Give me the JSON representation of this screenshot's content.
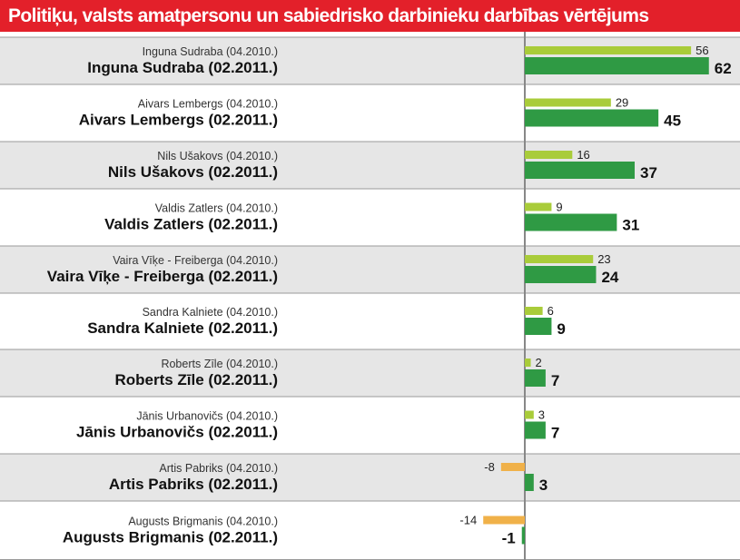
{
  "title": "Politiķu, valsts amatpersonu un sabiedrisko darbinieku darbības vērtējums",
  "colors": {
    "title_bg": "#e3202a",
    "prev_bar": "#a9cc3a",
    "curr_bar": "#2f9a44",
    "negative_bar": "#f0b149",
    "row_shade": "#e6e6e6",
    "axis": "#888888"
  },
  "chart_data": {
    "type": "bar",
    "orientation": "horizontal",
    "title": "Politiķu, valsts amatpersonu un sabiedrisko darbinieku darbības vērtējums",
    "series": [
      {
        "name": "04.2010.",
        "values": [
          56,
          29,
          16,
          9,
          23,
          6,
          2,
          3,
          -8,
          -14
        ]
      },
      {
        "name": "02.2011.",
        "values": [
          62,
          45,
          37,
          31,
          24,
          9,
          7,
          7,
          3,
          -1
        ]
      }
    ],
    "rows": [
      {
        "prev_label": "Inguna Sudraba (04.2010.)",
        "curr_label": "Inguna Sudraba (02.2011.)",
        "prev": "56",
        "curr": "62"
      },
      {
        "prev_label": "Aivars Lembergs (04.2010.)",
        "curr_label": "Aivars Lembergs (02.2011.)",
        "prev": "29",
        "curr": "45"
      },
      {
        "prev_label": "Nils Ušakovs (04.2010.)",
        "curr_label": "Nils Ušakovs (02.2011.)",
        "prev": "16",
        "curr": "37"
      },
      {
        "prev_label": "Valdis Zatlers (04.2010.)",
        "curr_label": "Valdis Zatlers (02.2011.)",
        "prev": "9",
        "curr": "31"
      },
      {
        "prev_label": "Vaira Vīķe - Freiberga (04.2010.)",
        "curr_label": "Vaira Vīķe - Freiberga (02.2011.)",
        "prev": "23",
        "curr": "24"
      },
      {
        "prev_label": "Sandra Kalniete (04.2010.)",
        "curr_label": "Sandra Kalniete (02.2011.)",
        "prev": "6",
        "curr": "9"
      },
      {
        "prev_label": "Roberts Zīle (04.2010.)",
        "curr_label": "Roberts Zīle (02.2011.)",
        "prev": "2",
        "curr": "7"
      },
      {
        "prev_label": "Jānis Urbanovičs (04.2010.)",
        "curr_label": "Jānis Urbanovičs (02.2011.)",
        "prev": "3",
        "curr": "7"
      },
      {
        "prev_label": "Artis Pabriks (04.2010.)",
        "curr_label": "Artis Pabriks (02.2011.)",
        "prev": "-8",
        "curr": "3"
      },
      {
        "prev_label": "Augusts Brigmanis (04.2010.)",
        "curr_label": "Augusts Brigmanis (02.2011.)",
        "prev": "-14",
        "curr": "-1"
      }
    ],
    "xlim": [
      -14,
      62
    ]
  }
}
